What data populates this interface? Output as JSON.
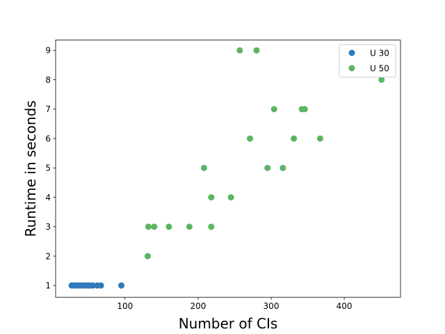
{
  "chart_data": {
    "type": "scatter",
    "title": "",
    "xlabel": "Number of CIs",
    "ylabel": "Runtime in seconds",
    "xlim": [
      5,
      477
    ],
    "ylim": [
      0.6,
      9.35
    ],
    "xticks": [
      100,
      200,
      300,
      400
    ],
    "yticks": [
      1,
      2,
      3,
      4,
      5,
      6,
      7,
      8,
      9
    ],
    "grid": false,
    "legend_position": "top-right",
    "series": [
      {
        "name": "U 30",
        "color": "#2f7ab8",
        "points": [
          [
            27,
            1
          ],
          [
            31,
            1
          ],
          [
            35,
            1
          ],
          [
            38,
            1
          ],
          [
            42,
            1
          ],
          [
            46,
            1
          ],
          [
            49,
            1
          ],
          [
            52,
            1
          ],
          [
            56,
            1
          ],
          [
            62,
            1
          ],
          [
            67,
            1
          ],
          [
            95,
            1
          ]
        ]
      },
      {
        "name": "U 50",
        "color": "#5db462",
        "points": [
          [
            131,
            2
          ],
          [
            132,
            3
          ],
          [
            140,
            3
          ],
          [
            160,
            3
          ],
          [
            188,
            3
          ],
          [
            218,
            3
          ],
          [
            218,
            4
          ],
          [
            245,
            4
          ],
          [
            208,
            5
          ],
          [
            295,
            5
          ],
          [
            316,
            5
          ],
          [
            271,
            6
          ],
          [
            331,
            6
          ],
          [
            367,
            6
          ],
          [
            304,
            7
          ],
          [
            342,
            7
          ],
          [
            346,
            7
          ],
          [
            451,
            8
          ],
          [
            257,
            9
          ],
          [
            280,
            9
          ]
        ]
      }
    ]
  }
}
